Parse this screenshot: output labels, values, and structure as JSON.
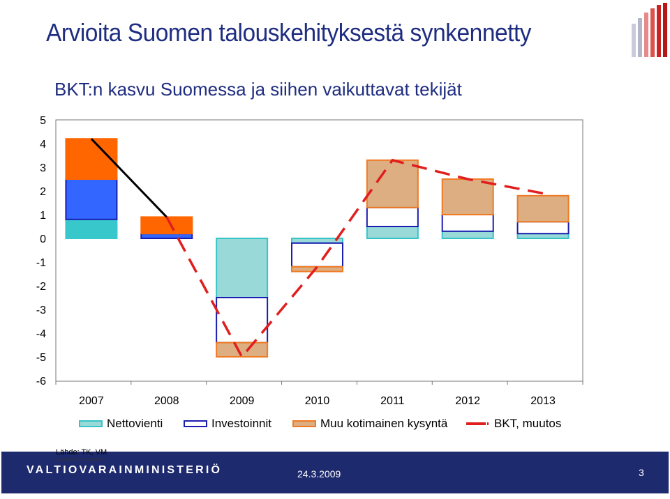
{
  "slide": {
    "title": "Arvioita Suomen talouskehityksestä synkennetty"
  },
  "chart_data": {
    "type": "bar",
    "title": "BKT:n kasvu Suomessa ja siihen vaikuttavat tekijät",
    "categories": [
      "2007",
      "2008",
      "2009",
      "2010",
      "2011",
      "2012",
      "2013"
    ],
    "y_ticks": [
      "5",
      "4",
      "3",
      "2",
      "1",
      "0",
      "-1",
      "-2",
      "-3",
      "-4",
      "-5",
      "-6"
    ],
    "ylim": [
      -6,
      5
    ],
    "grid": false,
    "legend_position": "bottom",
    "series": [
      {
        "name": "Nettovienti",
        "kind": "stacked-bar",
        "fill": "#99dad9",
        "stroke": "#38c3c7",
        "values": [
          0.8,
          0.0,
          -2.5,
          -0.2,
          0.5,
          0.3,
          0.2
        ]
      },
      {
        "name": "Investoinnit",
        "kind": "stacked-bar",
        "fill": "#ffffff",
        "stroke": "#1b1db0",
        "values": [
          1.7,
          0.2,
          -1.9,
          -1.0,
          0.8,
          0.7,
          0.5
        ]
      },
      {
        "name": "Muu kotimainen kysyntä",
        "kind": "stacked-bar",
        "fill": "#dcae82",
        "stroke": "#f07a23",
        "values": [
          1.7,
          0.7,
          -0.6,
          -0.2,
          2.0,
          1.5,
          1.1
        ]
      },
      {
        "name": "BKT, muutos",
        "kind": "line",
        "stroke": "#e01e1e",
        "values": [
          4.2,
          0.9,
          -5.0,
          -1.2,
          3.3,
          2.5,
          1.9
        ]
      }
    ],
    "early_bar_colors": {
      "Investoinnit": "#3366ff",
      "Muu kotimainen kysyntä": "#ff6600",
      "line_solid": "#000000"
    }
  },
  "legend": {
    "net": "Nettovienti",
    "inv": "Investoinnit",
    "muu": "Muu kotimainen kysyntä",
    "bkt": "BKT, muutos"
  },
  "source": "Lähde: TK, VM",
  "file_ref": "19.3.2009/VM/KOUL/ 22674.xls",
  "footer": {
    "organization": "VALTIOVARAINMINISTERIÖ",
    "date": "24.3.2009",
    "page": "3"
  }
}
